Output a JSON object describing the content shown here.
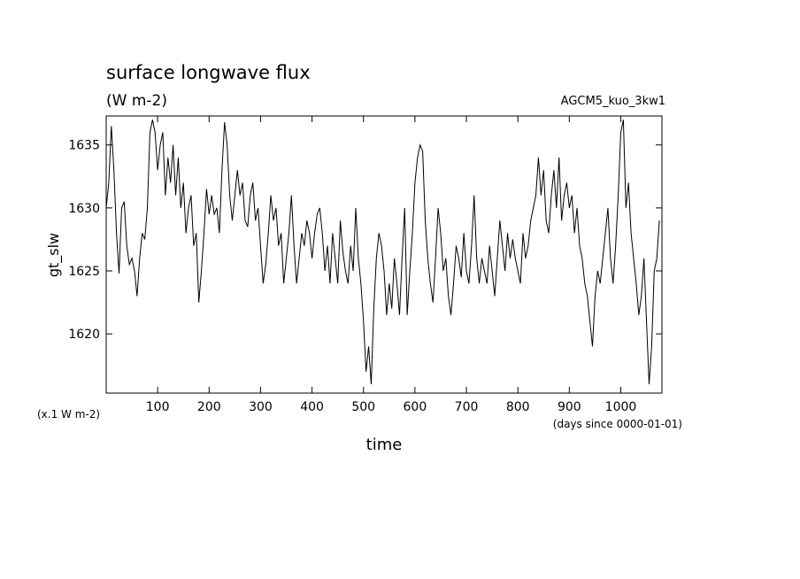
{
  "chart_data": {
    "type": "line",
    "title": "surface longwave flux",
    "subtitle": "(W m-2)",
    "annotation": "AGCM5_kuo_3kw1",
    "ylabel": "gt_slw",
    "xlabel": "time",
    "y_unit_note": "(x.1 W m-2)",
    "x_unit_note": "(days since 0000-01-01)",
    "xlim": [
      0,
      1080
    ],
    "ylim": [
      1615.3,
      1637.3
    ],
    "xticks": [
      100,
      200,
      300,
      400,
      500,
      600,
      700,
      800,
      900,
      1000
    ],
    "yticks": [
      1620,
      1625,
      1630,
      1635
    ],
    "x": [
      0,
      5,
      10,
      15,
      20,
      25,
      30,
      35,
      40,
      45,
      50,
      55,
      60,
      65,
      70,
      75,
      80,
      85,
      90,
      95,
      100,
      105,
      110,
      115,
      120,
      125,
      130,
      135,
      140,
      145,
      150,
      155,
      160,
      165,
      170,
      175,
      180,
      185,
      190,
      195,
      200,
      205,
      210,
      215,
      220,
      225,
      230,
      235,
      240,
      245,
      250,
      255,
      260,
      265,
      270,
      275,
      280,
      285,
      290,
      295,
      300,
      305,
      310,
      315,
      320,
      325,
      330,
      335,
      340,
      345,
      350,
      355,
      360,
      365,
      370,
      375,
      380,
      385,
      390,
      395,
      400,
      405,
      410,
      415,
      420,
      425,
      430,
      435,
      440,
      445,
      450,
      455,
      460,
      465,
      470,
      475,
      480,
      485,
      490,
      495,
      500,
      505,
      510,
      515,
      520,
      525,
      530,
      535,
      540,
      545,
      550,
      555,
      560,
      565,
      570,
      575,
      580,
      585,
      590,
      595,
      600,
      605,
      610,
      615,
      620,
      625,
      630,
      635,
      640,
      645,
      650,
      655,
      660,
      665,
      670,
      675,
      680,
      685,
      690,
      695,
      700,
      705,
      710,
      715,
      720,
      725,
      730,
      735,
      740,
      745,
      750,
      755,
      760,
      765,
      770,
      775,
      780,
      785,
      790,
      795,
      800,
      805,
      810,
      815,
      820,
      825,
      830,
      835,
      840,
      845,
      850,
      855,
      860,
      865,
      870,
      875,
      880,
      885,
      890,
      895,
      900,
      905,
      910,
      915,
      920,
      925,
      930,
      935,
      940,
      945,
      950,
      955,
      960,
      965,
      970,
      975,
      980,
      985,
      990,
      995,
      1000,
      1005,
      1010,
      1015,
      1020,
      1025,
      1030,
      1035,
      1040,
      1045,
      1050,
      1055,
      1060,
      1065,
      1070,
      1075
    ],
    "series": [
      {
        "color": "#000000",
        "values": [
          1630,
          1632,
          1636.5,
          1633,
          1628,
          1624.8,
          1630,
          1630.5,
          1627,
          1625.5,
          1626,
          1625,
          1623,
          1626,
          1628,
          1627.5,
          1630,
          1636,
          1637,
          1636,
          1633,
          1635,
          1636,
          1631,
          1634,
          1632,
          1635,
          1631,
          1634,
          1630,
          1632,
          1628,
          1630,
          1631,
          1627,
          1628,
          1622.5,
          1625,
          1628,
          1631.5,
          1629.5,
          1631,
          1629.5,
          1630,
          1628,
          1633,
          1636.8,
          1635,
          1631,
          1629,
          1631,
          1633,
          1631,
          1632,
          1629,
          1628.5,
          1631,
          1632,
          1629,
          1630,
          1627,
          1624,
          1625.5,
          1628,
          1631,
          1629,
          1630,
          1627,
          1628,
          1624,
          1626,
          1628,
          1631,
          1627,
          1624,
          1626,
          1628,
          1627,
          1629,
          1628,
          1626,
          1628,
          1629.5,
          1630,
          1628,
          1625,
          1627,
          1624,
          1628,
          1626,
          1624,
          1629,
          1626.5,
          1625,
          1624,
          1627,
          1625,
          1630,
          1626,
          1624,
          1621,
          1617,
          1619,
          1616,
          1622,
          1626,
          1628,
          1627,
          1625,
          1621.5,
          1624,
          1622,
          1626,
          1624,
          1621.5,
          1626,
          1630,
          1621.5,
          1625,
          1628,
          1632,
          1634,
          1635,
          1634.5,
          1629,
          1626,
          1624,
          1622.5,
          1626,
          1630,
          1628,
          1625,
          1626,
          1623,
          1621.5,
          1624,
          1627,
          1626,
          1624.5,
          1628,
          1625,
          1624,
          1627,
          1631,
          1626,
          1624,
          1626,
          1625,
          1624,
          1627,
          1625,
          1623,
          1626,
          1629,
          1627,
          1625,
          1628,
          1626,
          1627.5,
          1626,
          1625,
          1624,
          1628,
          1626,
          1627,
          1629,
          1630,
          1631,
          1634,
          1631,
          1633,
          1629,
          1628,
          1631,
          1633,
          1630,
          1634,
          1629,
          1631,
          1632,
          1630,
          1631,
          1628,
          1630,
          1627,
          1626,
          1624,
          1623,
          1621,
          1619,
          1623,
          1625,
          1624,
          1626,
          1628,
          1630,
          1626,
          1624,
          1627,
          1631,
          1636,
          1637,
          1630,
          1632,
          1628,
          1626,
          1624,
          1621.5,
          1623,
          1626,
          1621,
          1616,
          1619,
          1625,
          1626,
          1629
        ]
      }
    ]
  }
}
